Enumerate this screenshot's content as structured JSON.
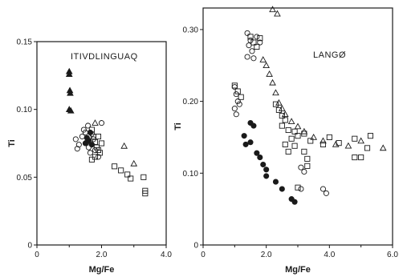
{
  "chart_data": [
    {
      "type": "scatter",
      "title": "ITIVDLINGUAQ",
      "xlabel": "Mg/Fe",
      "ylabel": "Ti",
      "xlim": [
        0,
        4.0
      ],
      "ylim": [
        0,
        0.15
      ],
      "xticks": [
        "0",
        "2.0",
        "4.0"
      ],
      "yticks": [
        "0",
        "0.05",
        "0.10",
        "0.15"
      ],
      "series": [
        {
          "marker": "filled-triangle",
          "points": [
            [
              1.0,
              0.128
            ],
            [
              1.0,
              0.126
            ],
            [
              1.02,
              0.114
            ],
            [
              1.03,
              0.112
            ],
            [
              1.0,
              0.1
            ],
            [
              1.05,
              0.099
            ]
          ]
        },
        {
          "marker": "circle",
          "points": [
            [
              1.2,
              0.078
            ],
            [
              1.3,
              0.074
            ],
            [
              1.25,
              0.071
            ],
            [
              1.45,
              0.085
            ],
            [
              1.5,
              0.083
            ],
            [
              1.4,
              0.08
            ],
            [
              1.55,
              0.076
            ],
            [
              1.6,
              0.072
            ],
            [
              1.65,
              0.068
            ],
            [
              1.7,
              0.082
            ],
            [
              1.75,
              0.078
            ],
            [
              1.8,
              0.07
            ],
            [
              2.0,
              0.09
            ],
            [
              1.9,
              0.065
            ],
            [
              1.58,
              0.088
            ]
          ]
        },
        {
          "marker": "filled-circle",
          "points": [
            [
              1.55,
              0.079
            ],
            [
              1.6,
              0.077
            ],
            [
              1.65,
              0.083
            ],
            [
              1.7,
              0.074
            ],
            [
              1.5,
              0.075
            ]
          ]
        },
        {
          "marker": "square",
          "points": [
            [
              1.7,
              0.085
            ],
            [
              1.75,
              0.08
            ],
            [
              1.8,
              0.076
            ],
            [
              1.85,
              0.072
            ],
            [
              1.9,
              0.07
            ],
            [
              1.95,
              0.068
            ],
            [
              1.8,
              0.065
            ],
            [
              1.7,
              0.063
            ],
            [
              2.0,
              0.075
            ],
            [
              1.9,
              0.08
            ],
            [
              2.4,
              0.058
            ],
            [
              2.6,
              0.055
            ],
            [
              2.8,
              0.052
            ],
            [
              2.9,
              0.049
            ],
            [
              3.3,
              0.05
            ],
            [
              3.35,
              0.04
            ],
            [
              3.35,
              0.038
            ]
          ]
        },
        {
          "marker": "triangle",
          "points": [
            [
              1.8,
              0.09
            ],
            [
              2.7,
              0.073
            ],
            [
              3.0,
              0.06
            ]
          ]
        }
      ]
    },
    {
      "type": "scatter",
      "title": "LANGØ",
      "xlabel": "Mg/Fe",
      "ylabel": "Ti",
      "xlim": [
        0,
        6.0
      ],
      "ylim": [
        0,
        0.33
      ],
      "xticks": [
        "0",
        "2.0",
        "4.0",
        "6.0"
      ],
      "yticks": [
        "0",
        "0.10",
        "0.20",
        "0.30"
      ],
      "series": [
        {
          "marker": "triangle",
          "points": [
            [
              2.2,
              0.328
            ],
            [
              2.35,
              0.322
            ],
            [
              1.9,
              0.258
            ],
            [
              2.0,
              0.25
            ],
            [
              2.1,
              0.238
            ],
            [
              2.2,
              0.226
            ],
            [
              2.3,
              0.212
            ],
            [
              2.4,
              0.198
            ],
            [
              2.5,
              0.19
            ],
            [
              2.6,
              0.182
            ],
            [
              2.8,
              0.172
            ],
            [
              3.0,
              0.165
            ],
            [
              3.2,
              0.158
            ],
            [
              3.5,
              0.15
            ],
            [
              3.8,
              0.145
            ],
            [
              4.2,
              0.14
            ],
            [
              4.6,
              0.138
            ],
            [
              5.0,
              0.145
            ],
            [
              5.7,
              0.135
            ]
          ]
        },
        {
          "marker": "circle",
          "points": [
            [
              1.4,
              0.295
            ],
            [
              1.5,
              0.285
            ],
            [
              1.45,
              0.278
            ],
            [
              1.55,
              0.27
            ],
            [
              1.6,
              0.26
            ],
            [
              1.4,
              0.262
            ],
            [
              1.7,
              0.29
            ],
            [
              1.8,
              0.282
            ],
            [
              1.0,
              0.22
            ],
            [
              1.05,
              0.21
            ],
            [
              1.1,
              0.2
            ],
            [
              1.0,
              0.19
            ],
            [
              1.05,
              0.182
            ],
            [
              1.15,
              0.196
            ],
            [
              3.1,
              0.108
            ],
            [
              3.2,
              0.102
            ],
            [
              3.8,
              0.078
            ],
            [
              3.9,
              0.072
            ],
            [
              3.1,
              0.078
            ]
          ]
        },
        {
          "marker": "square",
          "points": [
            [
              1.5,
              0.29
            ],
            [
              1.6,
              0.282
            ],
            [
              1.7,
              0.276
            ],
            [
              1.8,
              0.288
            ],
            [
              1.0,
              0.222
            ],
            [
              1.1,
              0.214
            ],
            [
              1.2,
              0.206
            ],
            [
              2.3,
              0.196
            ],
            [
              2.4,
              0.188
            ],
            [
              2.5,
              0.18
            ],
            [
              2.6,
              0.174
            ],
            [
              2.5,
              0.166
            ],
            [
              2.7,
              0.16
            ],
            [
              2.9,
              0.158
            ],
            [
              3.0,
              0.152
            ],
            [
              3.2,
              0.155
            ],
            [
              2.8,
              0.148
            ],
            [
              2.6,
              0.14
            ],
            [
              2.7,
              0.13
            ],
            [
              2.9,
              0.138
            ],
            [
              3.2,
              0.13
            ],
            [
              3.3,
              0.12
            ],
            [
              3.4,
              0.145
            ],
            [
              3.8,
              0.14
            ],
            [
              4.0,
              0.15
            ],
            [
              4.3,
              0.142
            ],
            [
              4.8,
              0.148
            ],
            [
              5.0,
              0.122
            ],
            [
              5.2,
              0.135
            ],
            [
              5.3,
              0.152
            ],
            [
              4.8,
              0.122
            ],
            [
              3.3,
              0.11
            ],
            [
              3.0,
              0.08
            ]
          ]
        },
        {
          "marker": "filled-circle",
          "points": [
            [
              1.3,
              0.152
            ],
            [
              1.5,
              0.143
            ],
            [
              1.5,
              0.17
            ],
            [
              1.6,
              0.166
            ],
            [
              1.7,
              0.128
            ],
            [
              1.8,
              0.122
            ],
            [
              1.9,
              0.112
            ],
            [
              2.0,
              0.105
            ],
            [
              2.0,
              0.096
            ],
            [
              2.3,
              0.088
            ],
            [
              2.5,
              0.078
            ],
            [
              2.8,
              0.064
            ],
            [
              2.9,
              0.06
            ],
            [
              1.35,
              0.14
            ]
          ]
        }
      ]
    }
  ]
}
